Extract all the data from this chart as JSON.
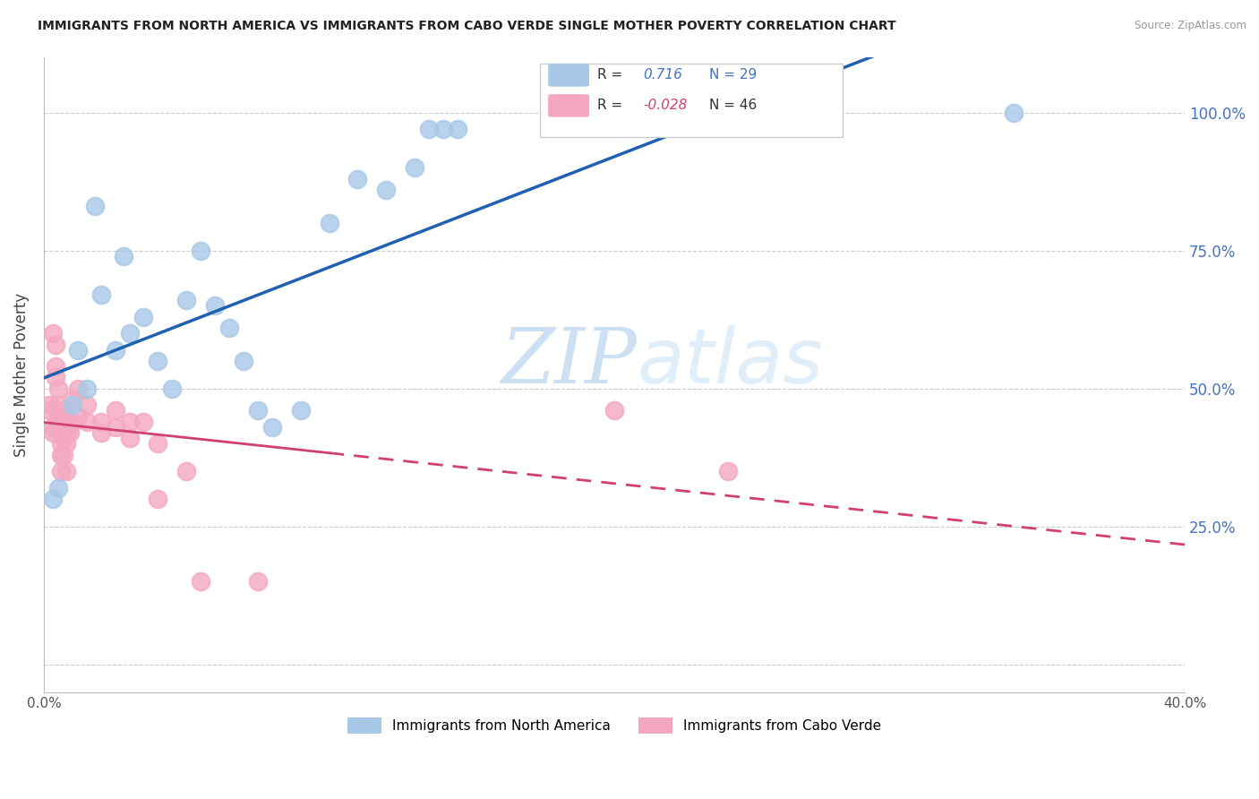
{
  "title": "IMMIGRANTS FROM NORTH AMERICA VS IMMIGRANTS FROM CABO VERDE SINGLE MOTHER POVERTY CORRELATION CHART",
  "source": "Source: ZipAtlas.com",
  "ylabel": "Single Mother Poverty",
  "watermark_zip": "ZIP",
  "watermark_atlas": "atlas",
  "r_blue": 0.716,
  "n_blue": 29,
  "r_pink": -0.028,
  "n_pink": 46,
  "legend_labels": [
    "Immigrants from North America",
    "Immigrants from Cabo Verde"
  ],
  "blue_color": "#a8c8e8",
  "pink_color": "#f4a8c0",
  "blue_line_color": "#2060b0",
  "pink_line_color": "#d04070",
  "blue_scatter": [
    [
      0.3,
      0.3
    ],
    [
      0.5,
      0.32
    ],
    [
      1.0,
      0.47
    ],
    [
      1.2,
      0.57
    ],
    [
      1.5,
      0.5
    ],
    [
      1.8,
      0.83
    ],
    [
      2.0,
      0.67
    ],
    [
      2.5,
      0.57
    ],
    [
      2.8,
      0.74
    ],
    [
      3.0,
      0.6
    ],
    [
      3.5,
      0.63
    ],
    [
      4.0,
      0.55
    ],
    [
      4.5,
      0.5
    ],
    [
      5.0,
      0.66
    ],
    [
      5.5,
      0.75
    ],
    [
      6.0,
      0.65
    ],
    [
      6.5,
      0.61
    ],
    [
      7.0,
      0.55
    ],
    [
      7.5,
      0.46
    ],
    [
      8.0,
      0.43
    ],
    [
      9.0,
      0.46
    ],
    [
      10.0,
      0.8
    ],
    [
      11.0,
      0.88
    ],
    [
      12.0,
      0.86
    ],
    [
      13.0,
      0.9
    ],
    [
      13.5,
      0.97
    ],
    [
      14.0,
      0.97
    ],
    [
      14.5,
      0.97
    ],
    [
      34.0,
      1.0
    ]
  ],
  "pink_scatter": [
    [
      0.2,
      0.46
    ],
    [
      0.2,
      0.47
    ],
    [
      0.3,
      0.43
    ],
    [
      0.3,
      0.42
    ],
    [
      0.3,
      0.6
    ],
    [
      0.4,
      0.58
    ],
    [
      0.4,
      0.54
    ],
    [
      0.4,
      0.52
    ],
    [
      0.5,
      0.5
    ],
    [
      0.5,
      0.47
    ],
    [
      0.5,
      0.45
    ],
    [
      0.5,
      0.44
    ],
    [
      0.6,
      0.42
    ],
    [
      0.6,
      0.4
    ],
    [
      0.6,
      0.38
    ],
    [
      0.6,
      0.35
    ],
    [
      0.7,
      0.46
    ],
    [
      0.7,
      0.43
    ],
    [
      0.7,
      0.41
    ],
    [
      0.7,
      0.38
    ],
    [
      0.8,
      0.45
    ],
    [
      0.8,
      0.42
    ],
    [
      0.8,
      0.4
    ],
    [
      0.8,
      0.35
    ],
    [
      0.9,
      0.44
    ],
    [
      0.9,
      0.42
    ],
    [
      1.0,
      0.48
    ],
    [
      1.0,
      0.44
    ],
    [
      1.2,
      0.5
    ],
    [
      1.2,
      0.45
    ],
    [
      1.5,
      0.47
    ],
    [
      1.5,
      0.44
    ],
    [
      2.0,
      0.44
    ],
    [
      2.0,
      0.42
    ],
    [
      2.5,
      0.46
    ],
    [
      2.5,
      0.43
    ],
    [
      3.0,
      0.44
    ],
    [
      3.0,
      0.41
    ],
    [
      3.5,
      0.44
    ],
    [
      4.0,
      0.4
    ],
    [
      4.0,
      0.3
    ],
    [
      5.0,
      0.35
    ],
    [
      5.5,
      0.15
    ],
    [
      7.5,
      0.15
    ],
    [
      20.0,
      0.46
    ],
    [
      24.0,
      0.35
    ]
  ],
  "xlim": [
    0.0,
    40.0
  ],
  "ylim": [
    -0.05,
    1.1
  ],
  "yticks": [
    0.0,
    0.25,
    0.5,
    0.75,
    1.0
  ],
  "ytick_labels_right": [
    "",
    "25.0%",
    "50.0%",
    "75.0%",
    "100.0%"
  ],
  "xticks": [
    0.0,
    10.0,
    20.0,
    30.0,
    40.0
  ],
  "xtick_labels": [
    "0.0%",
    "",
    "",
    "",
    "40.0%"
  ],
  "background_color": "#ffffff",
  "grid_color": "#cccccc"
}
